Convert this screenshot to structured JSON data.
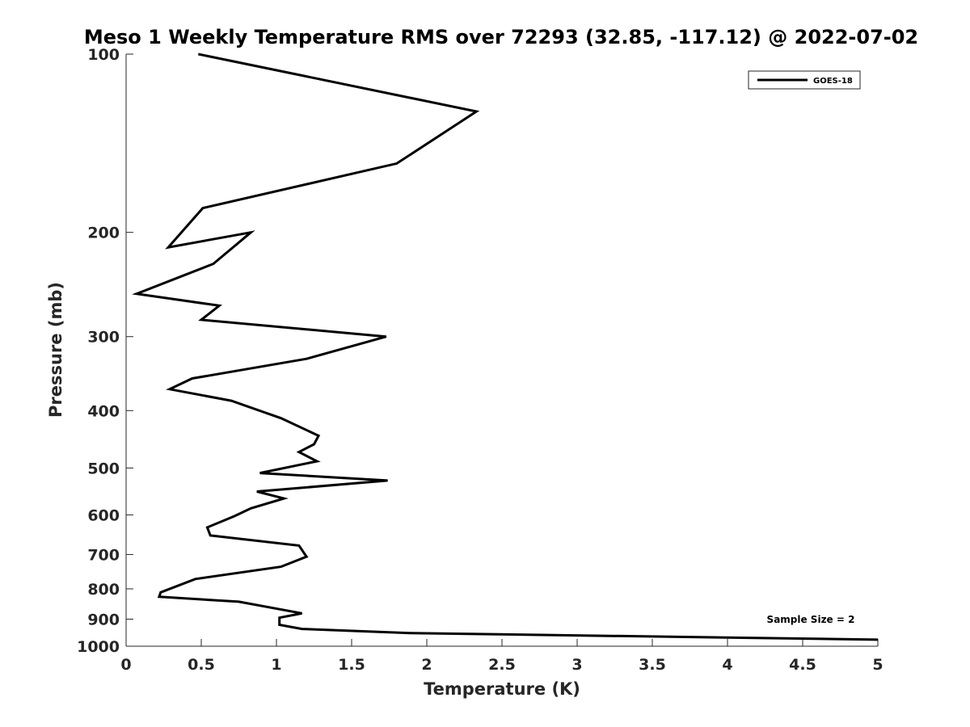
{
  "chart_data": {
    "type": "line",
    "title": "Meso 1 Weekly Temperature RMS over 72293 (32.85, -117.12) @ 2022-07-02",
    "xlabel": "Temperature (K)",
    "ylabel": "Pressure (mb)",
    "xlim": [
      0,
      5
    ],
    "ylim": [
      100,
      1000
    ],
    "y_scale": "log",
    "y_reversed": true,
    "grid": false,
    "legend_position": "top-right",
    "x_ticks": [
      "0",
      "0.5",
      "1",
      "1.5",
      "2",
      "2.5",
      "3",
      "3.5",
      "4",
      "4.5",
      "5"
    ],
    "y_ticks": [
      "100",
      "200",
      "300",
      "400",
      "500",
      "600",
      "700",
      "800",
      "900",
      "1000"
    ],
    "annotation": "Sample Size = 2",
    "series": [
      {
        "name": "GOES-18",
        "color": "#000000",
        "x": [
          0.48,
          2.33,
          1.8,
          0.51,
          0.28,
          0.83,
          0.58,
          0.07,
          0.62,
          0.5,
          1.73,
          1.2,
          0.44,
          0.29,
          0.7,
          1.03,
          1.28,
          1.25,
          1.15,
          1.27,
          0.89,
          1.74,
          0.87,
          1.05,
          0.83,
          0.72,
          0.54,
          0.56,
          1.15,
          1.2,
          1.03,
          0.46,
          0.23,
          0.22,
          0.75,
          1.17,
          1.02,
          1.02,
          1.17,
          1.89,
          5.0
        ],
        "y": [
          100,
          125,
          153,
          182,
          212,
          200,
          226,
          254,
          266,
          281,
          300,
          327,
          353,
          368,
          385,
          412,
          441,
          456,
          470,
          487,
          510,
          525,
          548,
          563,
          585,
          603,
          630,
          650,
          676,
          706,
          734,
          770,
          811,
          825,
          841,
          880,
          895,
          920,
          935,
          950,
          975
        ]
      }
    ]
  }
}
